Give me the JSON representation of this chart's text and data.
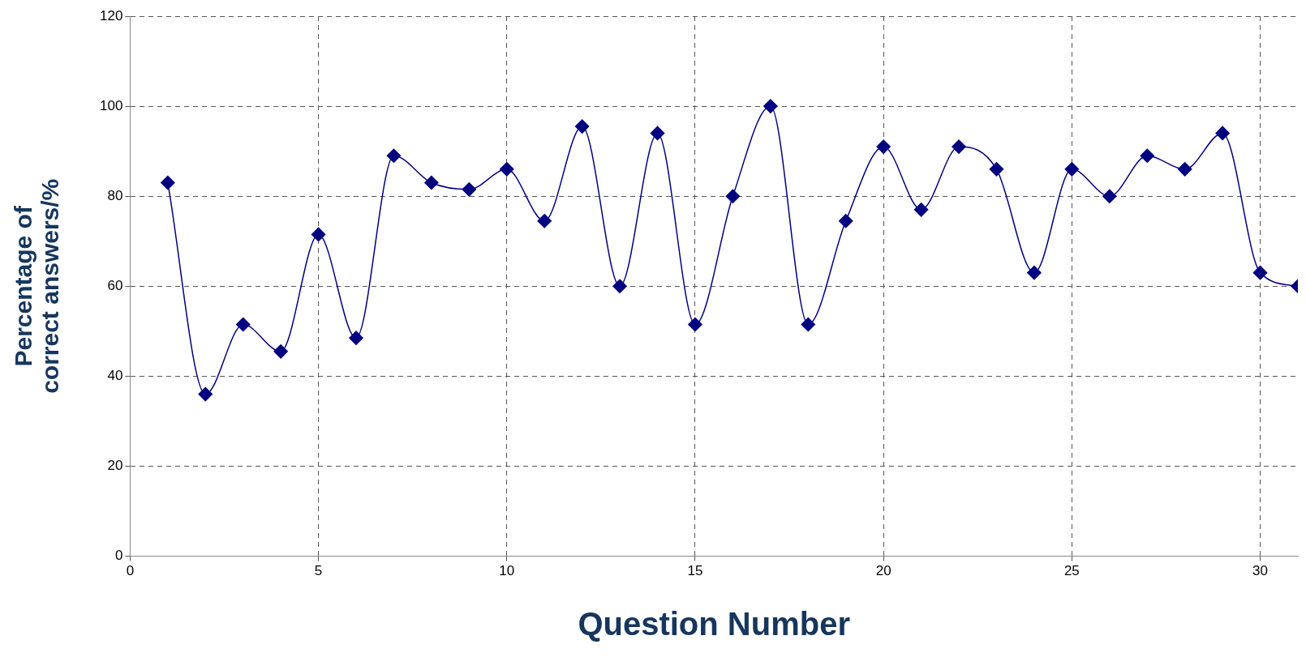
{
  "chart_data": {
    "type": "line",
    "xlabel": "Question Number",
    "ylabel": "Percentage of correct answers/%",
    "x": [
      1,
      2,
      3,
      4,
      5,
      6,
      7,
      8,
      9,
      10,
      11,
      12,
      13,
      14,
      15,
      16,
      17,
      18,
      19,
      20,
      21,
      22,
      23,
      24,
      25,
      26,
      27,
      28,
      29,
      30,
      31
    ],
    "series": [
      {
        "color": "#000080",
        "values": [
          83,
          36,
          51.5,
          45.5,
          71.5,
          48.5,
          89,
          83,
          81.5,
          86,
          74.5,
          95.5,
          60,
          94,
          51.5,
          80,
          100,
          51.5,
          74.5,
          91,
          77,
          91,
          86,
          63,
          86,
          80,
          89,
          86,
          94,
          63,
          60
        ]
      }
    ],
    "xlim": [
      0,
      31
    ],
    "xticks": [
      0,
      5,
      10,
      15,
      20,
      25,
      30
    ],
    "ylim": [
      0,
      120
    ],
    "yticks": [
      0,
      20,
      40,
      60,
      80,
      100,
      120
    ],
    "grid": true,
    "line_style": "solid",
    "marker": "diamond",
    "legend": false
  }
}
